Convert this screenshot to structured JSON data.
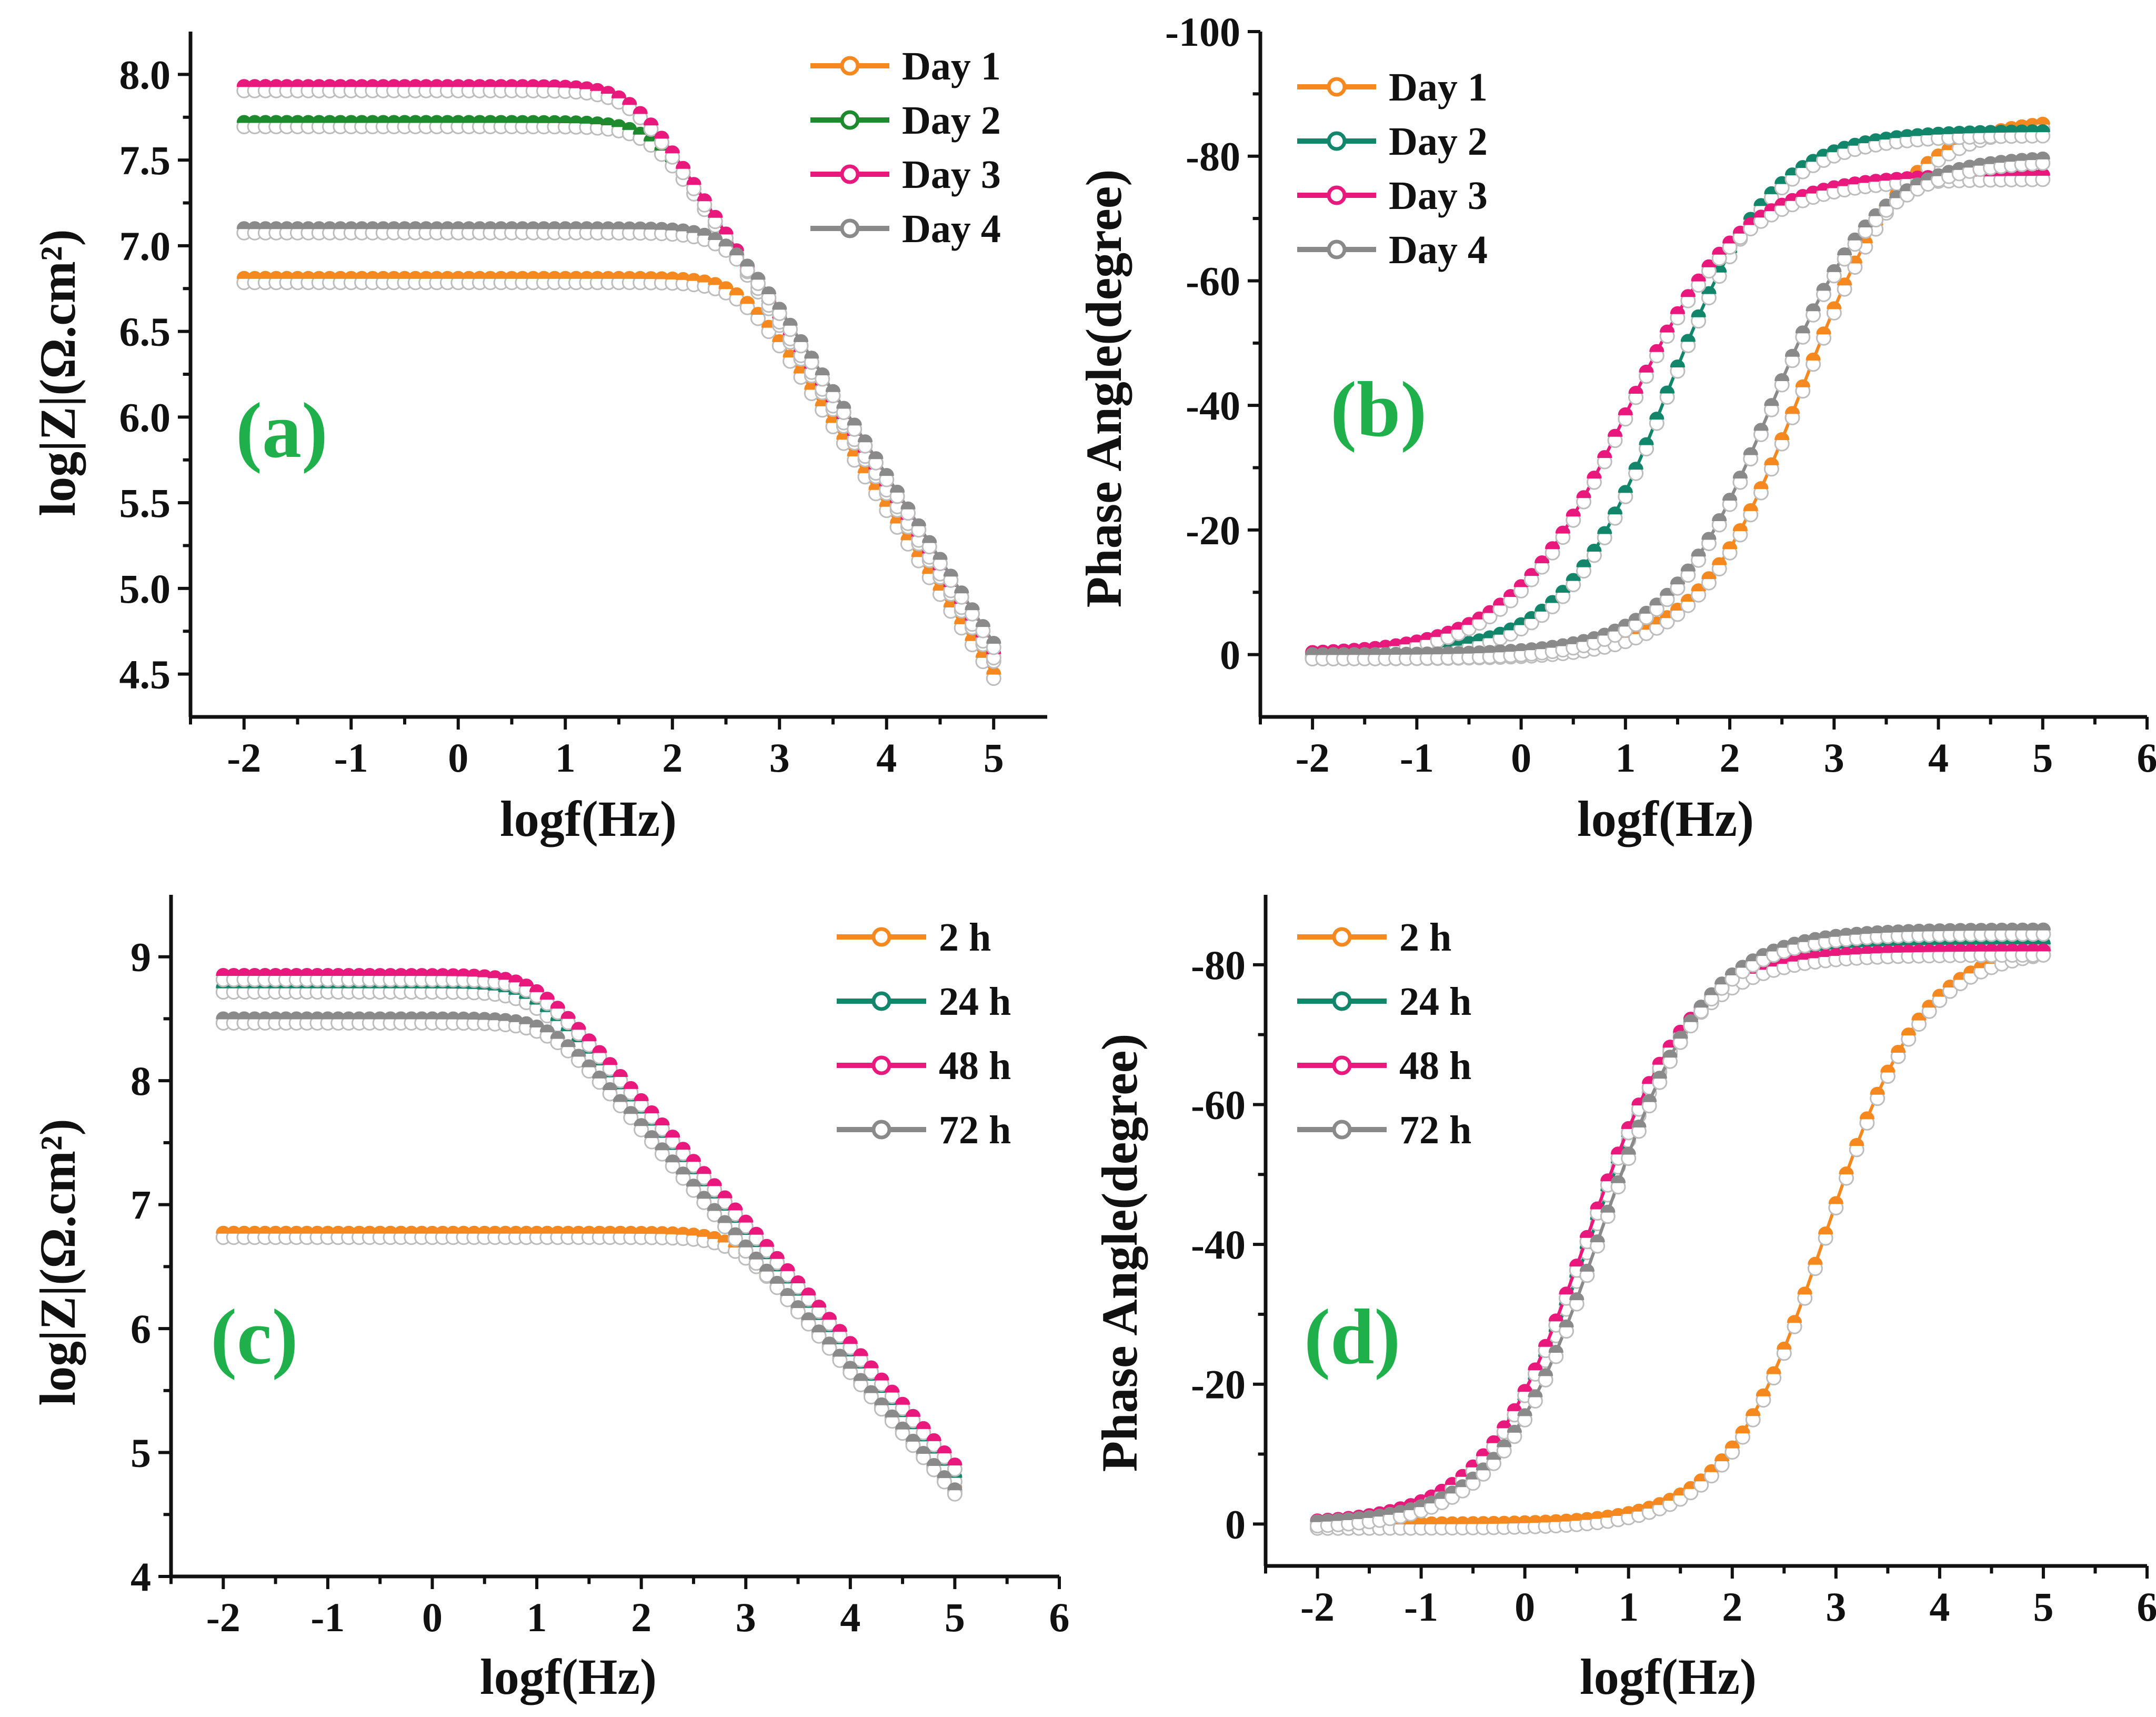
{
  "colors": {
    "orange": "#f5881f",
    "green": "#1e8a2e",
    "teal": "#12866a",
    "pink": "#e8187c",
    "gray": "#8a8a8a",
    "label": "#1fb04b"
  },
  "chart_data": [
    {
      "type": "line",
      "panel": "(a)",
      "xlabel": "logf(Hz)",
      "ylabel": "log|Z|(Ω.cm²)",
      "xlim": [
        -2.5,
        5.5
      ],
      "ylim": [
        4.25,
        8.25
      ],
      "xticks": [
        -2,
        -1,
        0,
        1,
        2,
        3,
        4,
        5
      ],
      "yticks": [
        4.5,
        5.0,
        5.5,
        6.0,
        6.5,
        7.0,
        7.5,
        8.0
      ],
      "yticklabels": [
        "4.5",
        "5.0",
        "5.5",
        "6.0",
        "6.5",
        "7.0",
        "7.5",
        "8.0"
      ],
      "legend_position": "top-right",
      "model": "bode_modulus",
      "series": [
        {
          "name": "Day 1",
          "color": "orange",
          "plateau": 6.81,
          "end": 4.5
        },
        {
          "name": "Day 2",
          "color": "green",
          "plateau": 7.72,
          "end": 4.6
        },
        {
          "name": "Day 3",
          "color": "pink",
          "plateau": 7.93,
          "end": 4.62
        },
        {
          "name": "Day 4",
          "color": "gray",
          "plateau": 7.1,
          "end": 4.68
        }
      ]
    },
    {
      "type": "line",
      "panel": "(b)",
      "xlabel": "logf(Hz)",
      "ylabel": "Phase Angle(degree)",
      "xlim": [
        -2.5,
        6
      ],
      "ylim": [
        10,
        -100
      ],
      "xticks": [
        -2,
        -1,
        0,
        1,
        2,
        3,
        4,
        5,
        6
      ],
      "yticks": [
        0,
        -20,
        -40,
        -60,
        -80,
        -100
      ],
      "yticklabels": [
        "0",
        "-20",
        "-40",
        "-60",
        "-80",
        "-100"
      ],
      "legend_position": "top-left",
      "model": "bode_phase",
      "series": [
        {
          "name": "Day 1",
          "color": "orange",
          "center": 2.7,
          "k": 2.0,
          "max": -86
        },
        {
          "name": "Day 2",
          "color": "teal",
          "center": 1.4,
          "k": 2.0,
          "max": -84
        },
        {
          "name": "Day 3",
          "color": "pink",
          "center": 1.0,
          "k": 1.8,
          "max": -77
        },
        {
          "name": "Day 4",
          "color": "gray",
          "center": 2.4,
          "k": 2.0,
          "max": -80
        }
      ]
    },
    {
      "type": "line",
      "panel": "(c)",
      "xlabel": "logf(Hz)",
      "ylabel": "log|Z|(Ω.cm²)",
      "xlim": [
        -2.5,
        6
      ],
      "ylim": [
        4,
        9.5
      ],
      "xticks": [
        -2,
        -1,
        0,
        1,
        2,
        3,
        4,
        5,
        6
      ],
      "yticks": [
        4,
        5,
        6,
        7,
        8,
        9
      ],
      "yticklabels": [
        "4",
        "5",
        "6",
        "7",
        "8",
        "9"
      ],
      "legend_position": "top-right",
      "model": "bode_modulus",
      "series": [
        {
          "name": "2 h",
          "color": "orange",
          "plateau": 6.77,
          "end": 4.72
        },
        {
          "name": "24 h",
          "color": "teal",
          "plateau": 8.75,
          "end": 4.8
        },
        {
          "name": "48 h",
          "color": "pink",
          "plateau": 8.85,
          "end": 4.9
        },
        {
          "name": "72 h",
          "color": "gray",
          "plateau": 8.5,
          "end": 4.7
        }
      ]
    },
    {
      "type": "line",
      "panel": "(d)",
      "xlabel": "logf(Hz)",
      "ylabel": "Phase Angle(degree)",
      "xlim": [
        -2.5,
        6
      ],
      "ylim": [
        6,
        -90
      ],
      "xticks": [
        -2,
        -1,
        0,
        1,
        2,
        3,
        4,
        5,
        6
      ],
      "yticks": [
        0,
        -20,
        -40,
        -60,
        -80
      ],
      "yticklabels": [
        "0",
        "-20",
        "-40",
        "-60",
        "-80"
      ],
      "legend_position": "top-left",
      "model": "bode_phase",
      "series": [
        {
          "name": "2 h",
          "color": "orange",
          "center": 2.9,
          "k": 2.1,
          "max": -83
        },
        {
          "name": "24 h",
          "color": "teal",
          "center": 0.65,
          "k": 2.0,
          "max": -83
        },
        {
          "name": "48 h",
          "color": "pink",
          "center": 0.6,
          "k": 2.0,
          "max": -82
        },
        {
          "name": "72 h",
          "color": "gray",
          "center": 0.75,
          "k": 2.0,
          "max": -85
        }
      ]
    }
  ]
}
